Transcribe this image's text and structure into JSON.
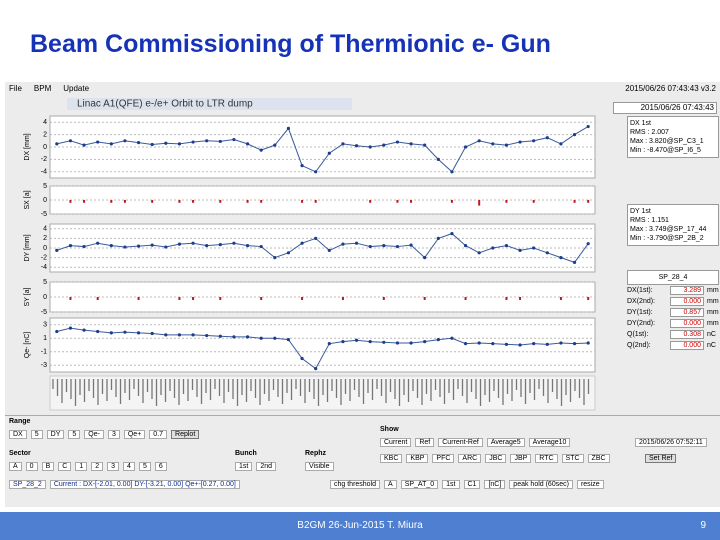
{
  "slide": {
    "title": "Beam Commissioning of Thermionic e- Gun",
    "footer": "B2GM 26-Jun-2015 T. Miura",
    "page": "9"
  },
  "app": {
    "menu": [
      "File",
      "BPM",
      "Update"
    ],
    "version": "2015/06/26 07:43:43 v3.2",
    "plot_title": "Linac A1(QFE) e-/e+ Orbit to LTR dump",
    "panels": [
      {
        "ylabel": "DX [mm]",
        "kind": "line",
        "ylim": [
          -5,
          5
        ],
        "yticks": [
          -4,
          -2,
          0,
          2,
          4
        ],
        "values": [
          0.5,
          1,
          0.3,
          0.8,
          0.5,
          1,
          0.7,
          0.4,
          0.6,
          0.5,
          0.8,
          1,
          0.9,
          1.2,
          0.5,
          -0.5,
          0.3,
          3,
          -3,
          -4,
          -1,
          0.5,
          0.2,
          0,
          0.3,
          0.8,
          0.5,
          0.3,
          -2,
          -4,
          0,
          1,
          0.5,
          0.3,
          0.8,
          1,
          1.5,
          0.5,
          2,
          3.3
        ]
      },
      {
        "ylabel": "SX [a]",
        "kind": "bars",
        "ylim": [
          -5,
          5
        ],
        "yticks": [
          -5,
          0,
          5
        ],
        "values": [
          0,
          -1,
          -1,
          0,
          -1,
          -1,
          0,
          -1,
          0,
          -1,
          -1,
          0,
          -1,
          0,
          -1,
          -1,
          0,
          0,
          -1,
          -1,
          0,
          0,
          0,
          -1,
          0,
          -1,
          -1,
          0,
          0,
          -1,
          0,
          -2,
          0,
          -1,
          0,
          -1,
          0,
          0,
          -1,
          -1
        ]
      },
      {
        "ylabel": "DY [mm]",
        "kind": "line",
        "ylim": [
          -5,
          5
        ],
        "yticks": [
          -4,
          -2,
          0,
          2,
          4
        ],
        "values": [
          -0.5,
          0.5,
          0.3,
          1,
          0.5,
          0.2,
          0.4,
          0.6,
          0.2,
          0.8,
          1,
          0.5,
          0.7,
          1,
          0.5,
          0.3,
          -2,
          -1,
          1,
          2,
          -0.5,
          0.8,
          1,
          0.3,
          0.5,
          0.3,
          0.6,
          -2,
          2,
          3,
          0.5,
          -1,
          0,
          0.5,
          -0.5,
          0,
          -1,
          -2,
          -3,
          0.9
        ]
      },
      {
        "ylabel": "SY [a]",
        "kind": "bars",
        "ylim": [
          -5,
          5
        ],
        "yticks": [
          -5,
          0,
          5
        ],
        "values": [
          0,
          -1,
          0,
          -1,
          0,
          0,
          -1,
          0,
          0,
          -1,
          -1,
          0,
          -1,
          0,
          0,
          -1,
          0,
          0,
          -1,
          0,
          0,
          -1,
          0,
          0,
          -1,
          0,
          0,
          -1,
          0,
          0,
          -1,
          0,
          0,
          -1,
          -1,
          0,
          0,
          -1,
          0,
          -1
        ]
      },
      {
        "ylabel": "Qe- [nC]",
        "kind": "line",
        "ylim": [
          -4,
          4
        ],
        "yticks": [
          -3,
          -1,
          1,
          3
        ],
        "values": [
          2,
          2.5,
          2.2,
          2,
          1.8,
          1.9,
          1.8,
          1.7,
          1.5,
          1.5,
          1.5,
          1.4,
          1.3,
          1.2,
          1.2,
          1,
          1,
          0.8,
          -2,
          -3.5,
          0.2,
          0.5,
          0.7,
          0.5,
          0.4,
          0.3,
          0.3,
          0.5,
          0.8,
          1,
          0.2,
          0.3,
          0.2,
          0.1,
          0,
          0.2,
          0.1,
          0.3,
          0.2,
          0.3
        ]
      }
    ],
    "timestamp": "2015/06/26 07:43:43",
    "dx_box": [
      "DX 1st",
      "RMS : 2.007",
      "Max : 3.820@SP_C3_1",
      "Min : -8.470@SP_I6_5"
    ],
    "dy_box": [
      "DY 1st",
      "RMS : 1.151",
      "Max : 3.749@SP_17_44",
      "Min : -3.790@SP_2B_2"
    ],
    "bpm": {
      "name": "SP_28_4",
      "rows": [
        [
          "DX(1st):",
          "3.289",
          "mm"
        ],
        [
          "DX(2nd):",
          "0.000",
          "mm"
        ],
        [
          "DY(1st):",
          "0.857",
          "mm"
        ],
        [
          "DY(2nd):",
          "0.000",
          "mm"
        ],
        [
          "Q(1st):",
          "0.308",
          "nC"
        ],
        [
          "Q(2nd):",
          "0.000",
          "nC"
        ]
      ]
    },
    "range": {
      "label": "Range",
      "items": [
        "DX",
        "5",
        "DY",
        "5",
        "Qe-",
        "3",
        "Qe+",
        "0.7"
      ],
      "button": "Replot"
    },
    "sector": {
      "label": "Sector",
      "items": [
        "A",
        "0",
        "B",
        "C",
        "1",
        "2",
        "3",
        "4",
        "5",
        "6"
      ]
    },
    "bunch": {
      "label": "Bunch",
      "items": [
        "1st",
        "2nd"
      ]
    },
    "rephz": {
      "label": "Rephz",
      "items": [
        "Visible"
      ]
    },
    "show": {
      "label": "Show",
      "row1": [
        "Current",
        "Ref",
        "Current-Ref",
        "Average5",
        "Average10"
      ],
      "row2": [
        "KBC",
        "KBP",
        "PFC",
        "ARC",
        "JBC",
        "JBP",
        "RTC",
        "STC",
        "ZBC"
      ],
      "time": "2015/06/26 07:52:11",
      "button": "Set Ref"
    },
    "status": [
      "SP_28_2",
      "Current : DX-[-2.01, 0.00] DY-[-3.21, 0.00] Qe+-[0.27, 0.00]"
    ],
    "bottom": [
      "chg threshold",
      "A",
      "SP_AT_0",
      "1st",
      "C1",
      "[nC]",
      "peak hold (60sec)",
      "resize"
    ]
  }
}
